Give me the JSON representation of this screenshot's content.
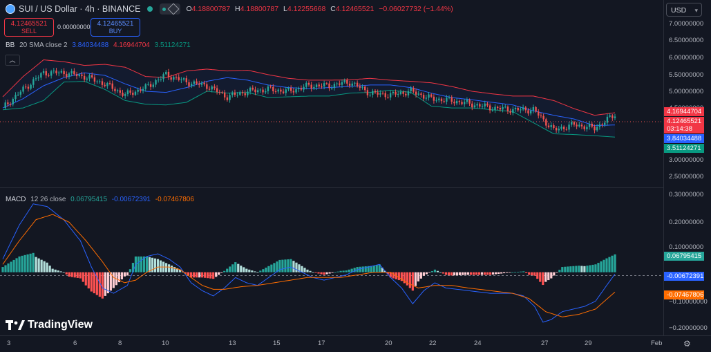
{
  "header": {
    "title": "SUI / US Dollar · 4h · BINANCE",
    "ohlc": [
      {
        "k": "O",
        "v": "4.18800787"
      },
      {
        "k": "H",
        "v": "4.18800787"
      },
      {
        "k": "L",
        "v": "4.12255668"
      },
      {
        "k": "C",
        "v": "4.12465521"
      }
    ],
    "change": "−0.06027732 (−1.44%)"
  },
  "trade": {
    "sell_price": "4.12465521",
    "sell_label": "SELL",
    "buy_price": "4.12465521",
    "buy_label": "BUY",
    "spread": "0.00000000"
  },
  "bb": {
    "name": "BB",
    "params": "20 SMA close 2",
    "basis": "3.84034488",
    "upper": "4.16944704",
    "lower": "3.51124271"
  },
  "macd": {
    "name": "MACD",
    "params": "12 26 close",
    "hist": "0.06795415",
    "macd": "-0.00672391",
    "signal": "-0.07467806"
  },
  "currency": "USD",
  "price_axis": [
    "7.00000000",
    "6.50000000",
    "6.00000000",
    "5.50000000",
    "5.00000000",
    "4.50000000",
    "3.00000000",
    "2.50000000"
  ],
  "price_tags": {
    "upper": "4.16944704",
    "last": "4.12465521",
    "countdown": "03:14:38",
    "basis": "3.84034488",
    "lower": "3.51124271"
  },
  "macd_axis": [
    "0.30000000",
    "0.20000000",
    "0.10000000",
    "−0.10000000",
    "−0.20000000"
  ],
  "macd_tags": {
    "hist": "0.06795415",
    "macd": "-0.00672391",
    "signal": "-0.07467806"
  },
  "x_axis": [
    "3",
    "6",
    "8",
    "10",
    "13",
    "15",
    "17",
    "20",
    "22",
    "24",
    "27",
    "29",
    "Feb"
  ],
  "brand": "TradingView",
  "colors": {
    "bg": "#131722",
    "up": "#26a69a",
    "down": "#ef5350",
    "bb_basis": "#2962ff",
    "bb_upper": "#f23645",
    "bb_lower": "#089981",
    "macd_line": "#2962ff",
    "signal_line": "#ff6d00",
    "hist_up_strong": "#26a69a",
    "hist_up_weak": "#b2dfdb",
    "hist_down_strong": "#ff5252",
    "hist_down_weak": "#ffcdd2"
  },
  "chart_data": {
    "type": "line",
    "price": {
      "ylim": [
        2.3,
        7.05
      ],
      "basis": [
        [
          0,
          4.3
        ],
        [
          8,
          4.55
        ],
        [
          16,
          4.9
        ],
        [
          24,
          5.12
        ],
        [
          32,
          5.25
        ],
        [
          40,
          5.18
        ],
        [
          48,
          4.95
        ],
        [
          56,
          4.75
        ],
        [
          64,
          4.72
        ],
        [
          72,
          4.85
        ],
        [
          80,
          5.02
        ],
        [
          88,
          5.12
        ],
        [
          96,
          5.05
        ],
        [
          104,
          4.92
        ],
        [
          112,
          4.85
        ],
        [
          120,
          4.82
        ],
        [
          128,
          4.85
        ],
        [
          136,
          4.88
        ],
        [
          144,
          4.92
        ],
        [
          152,
          4.92
        ],
        [
          160,
          4.85
        ],
        [
          168,
          4.7
        ],
        [
          176,
          4.58
        ],
        [
          184,
          4.52
        ],
        [
          192,
          4.45
        ],
        [
          200,
          4.38
        ],
        [
          208,
          4.22
        ],
        [
          216,
          4.1
        ],
        [
          224,
          4.0
        ],
        [
          232,
          3.82
        ],
        [
          240,
          3.84
        ]
      ],
      "upper": [
        [
          0,
          4.6
        ],
        [
          8,
          5.15
        ],
        [
          16,
          5.6
        ],
        [
          24,
          5.55
        ],
        [
          32,
          5.45
        ],
        [
          40,
          5.48
        ],
        [
          48,
          5.4
        ],
        [
          56,
          5.15
        ],
        [
          64,
          5.12
        ],
        [
          72,
          5.3
        ],
        [
          80,
          5.35
        ],
        [
          88,
          5.3
        ],
        [
          96,
          5.32
        ],
        [
          104,
          5.2
        ],
        [
          112,
          5.1
        ],
        [
          120,
          5.05
        ],
        [
          128,
          5.05
        ],
        [
          136,
          5.06
        ],
        [
          144,
          5.1
        ],
        [
          152,
          5.05
        ],
        [
          160,
          5.02
        ],
        [
          168,
          4.98
        ],
        [
          176,
          4.88
        ],
        [
          184,
          4.75
        ],
        [
          192,
          4.68
        ],
        [
          200,
          4.62
        ],
        [
          208,
          4.62
        ],
        [
          216,
          4.5
        ],
        [
          224,
          4.28
        ],
        [
          232,
          4.1
        ],
        [
          240,
          4.17
        ]
      ],
      "lower": [
        [
          0,
          4.25
        ],
        [
          8,
          4.3
        ],
        [
          16,
          4.5
        ],
        [
          24,
          5.0
        ],
        [
          32,
          5.02
        ],
        [
          40,
          4.8
        ],
        [
          48,
          4.5
        ],
        [
          56,
          4.4
        ],
        [
          64,
          4.38
        ],
        [
          72,
          4.45
        ],
        [
          80,
          4.75
        ],
        [
          88,
          4.7
        ],
        [
          96,
          4.72
        ],
        [
          104,
          4.58
        ],
        [
          112,
          4.6
        ],
        [
          120,
          4.62
        ],
        [
          128,
          4.62
        ],
        [
          136,
          4.7
        ],
        [
          144,
          4.72
        ],
        [
          152,
          4.78
        ],
        [
          160,
          4.72
        ],
        [
          168,
          4.35
        ],
        [
          176,
          4.3
        ],
        [
          184,
          4.3
        ],
        [
          192,
          4.25
        ],
        [
          200,
          4.2
        ],
        [
          208,
          3.9
        ],
        [
          216,
          3.6
        ],
        [
          224,
          3.58
        ],
        [
          232,
          3.55
        ],
        [
          240,
          3.51
        ]
      ],
      "close": [
        [
          0,
          4.3
        ],
        [
          8,
          4.8
        ],
        [
          16,
          5.25
        ],
        [
          24,
          5.25
        ],
        [
          32,
          5.15
        ],
        [
          40,
          4.95
        ],
        [
          48,
          4.65
        ],
        [
          56,
          4.85
        ],
        [
          64,
          5.2
        ],
        [
          72,
          5.0
        ],
        [
          80,
          4.9
        ],
        [
          88,
          4.6
        ],
        [
          96,
          4.75
        ],
        [
          104,
          4.8
        ],
        [
          112,
          4.75
        ],
        [
          120,
          4.9
        ],
        [
          128,
          4.9
        ],
        [
          136,
          5.0
        ],
        [
          144,
          4.7
        ],
        [
          152,
          4.65
        ],
        [
          160,
          4.75
        ],
        [
          168,
          4.55
        ],
        [
          176,
          4.5
        ],
        [
          184,
          4.4
        ],
        [
          192,
          4.3
        ],
        [
          200,
          4.25
        ],
        [
          208,
          4.25
        ],
        [
          216,
          3.7
        ],
        [
          224,
          3.85
        ],
        [
          232,
          3.75
        ],
        [
          240,
          4.12
        ]
      ]
    },
    "macd": {
      "ylim": [
        -0.235,
        0.32
      ],
      "macd": [
        [
          0,
          0.05
        ],
        [
          6,
          0.18
        ],
        [
          11,
          0.26
        ],
        [
          16,
          0.25
        ],
        [
          22,
          0.2
        ],
        [
          28,
          0.12
        ],
        [
          32,
          0.02
        ],
        [
          36,
          -0.06
        ],
        [
          40,
          -0.08
        ],
        [
          45,
          -0.05
        ],
        [
          48,
          0.03
        ],
        [
          52,
          0.06
        ],
        [
          56,
          0.07
        ],
        [
          60,
          0.05
        ],
        [
          64,
          0.02
        ],
        [
          68,
          -0.04
        ],
        [
          72,
          -0.07
        ],
        [
          76,
          -0.09
        ],
        [
          80,
          -0.06
        ],
        [
          84,
          -0.02
        ],
        [
          88,
          -0.04
        ],
        [
          92,
          -0.05
        ],
        [
          96,
          -0.02
        ],
        [
          100,
          0.01
        ],
        [
          104,
          0.02
        ],
        [
          108,
          0.0
        ],
        [
          112,
          -0.02
        ],
        [
          116,
          -0.03
        ],
        [
          120,
          -0.02
        ],
        [
          124,
          -0.01
        ],
        [
          128,
          0.01
        ],
        [
          132,
          0.02
        ],
        [
          136,
          0.03
        ],
        [
          140,
          -0.02
        ],
        [
          144,
          -0.06
        ],
        [
          148,
          -0.12
        ],
        [
          152,
          -0.07
        ],
        [
          156,
          -0.04
        ],
        [
          160,
          -0.06
        ],
        [
          168,
          -0.07
        ],
        [
          176,
          -0.08
        ],
        [
          184,
          -0.08
        ],
        [
          188,
          -0.09
        ],
        [
          192,
          -0.13
        ],
        [
          195,
          -0.19
        ],
        [
          198,
          -0.18
        ],
        [
          202,
          -0.15
        ],
        [
          206,
          -0.14
        ],
        [
          210,
          -0.13
        ],
        [
          214,
          -0.11
        ],
        [
          218,
          -0.05
        ],
        [
          221,
          -0.007
        ]
      ],
      "signal": [
        [
          0,
          0.03
        ],
        [
          6,
          0.12
        ],
        [
          12,
          0.2
        ],
        [
          18,
          0.22
        ],
        [
          24,
          0.19
        ],
        [
          30,
          0.12
        ],
        [
          36,
          0.04
        ],
        [
          40,
          -0.02
        ],
        [
          44,
          -0.04
        ],
        [
          48,
          -0.03
        ],
        [
          52,
          0.0
        ],
        [
          56,
          0.02
        ],
        [
          60,
          0.02
        ],
        [
          64,
          0.01
        ],
        [
          68,
          -0.02
        ],
        [
          72,
          -0.05
        ],
        [
          76,
          -0.065
        ],
        [
          80,
          -0.065
        ],
        [
          86,
          -0.055
        ],
        [
          92,
          -0.05
        ],
        [
          98,
          -0.04
        ],
        [
          104,
          -0.03
        ],
        [
          110,
          -0.02
        ],
        [
          116,
          -0.02
        ],
        [
          122,
          -0.02
        ],
        [
          128,
          -0.01
        ],
        [
          134,
          0.0
        ],
        [
          140,
          0.0
        ],
        [
          146,
          -0.04
        ],
        [
          150,
          -0.06
        ],
        [
          156,
          -0.05
        ],
        [
          162,
          -0.05
        ],
        [
          168,
          -0.06
        ],
        [
          176,
          -0.07
        ],
        [
          184,
          -0.08
        ],
        [
          190,
          -0.1
        ],
        [
          196,
          -0.15
        ],
        [
          202,
          -0.17
        ],
        [
          208,
          -0.16
        ],
        [
          214,
          -0.14
        ],
        [
          221,
          -0.075
        ]
      ]
    }
  }
}
